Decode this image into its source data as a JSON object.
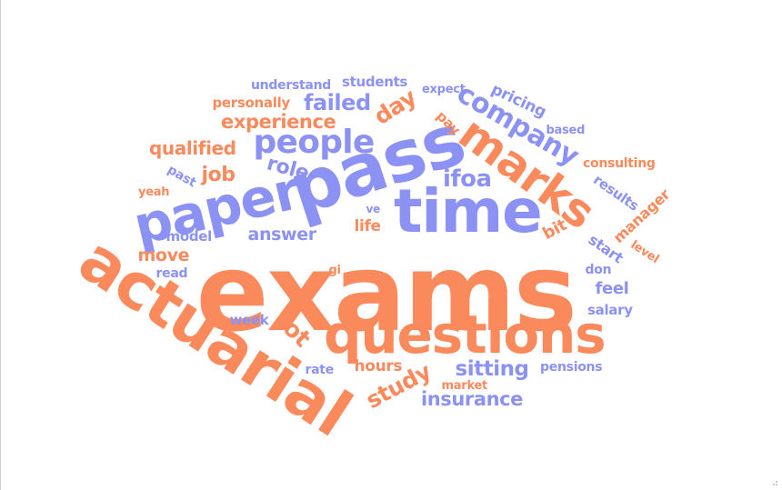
{
  "colors": {
    "orange": "#FA8A5C",
    "purple": "#8C92F4"
  },
  "words": [
    {
      "id": "exams",
      "text": "exams",
      "color": "orange"
    },
    {
      "id": "actuarial",
      "text": "actuarial",
      "color": "orange"
    },
    {
      "id": "pass",
      "text": "pass",
      "color": "purple"
    },
    {
      "id": "time",
      "text": "time",
      "color": "purple"
    },
    {
      "id": "paper",
      "text": "paper",
      "color": "purple"
    },
    {
      "id": "questions",
      "text": "questions",
      "color": "orange"
    },
    {
      "id": "marks",
      "text": "marks",
      "color": "orange"
    },
    {
      "id": "people",
      "text": "people",
      "color": "purple"
    },
    {
      "id": "company",
      "text": "company",
      "color": "purple"
    },
    {
      "id": "ifoa",
      "text": "ifoa",
      "color": "purple"
    },
    {
      "id": "experience",
      "text": "experience",
      "color": "orange"
    },
    {
      "id": "failed",
      "text": "failed",
      "color": "purple"
    },
    {
      "id": "day",
      "text": "day",
      "color": "orange"
    },
    {
      "id": "qualified",
      "text": "qualified",
      "color": "orange"
    },
    {
      "id": "job",
      "text": "job",
      "color": "orange"
    },
    {
      "id": "role",
      "text": "role",
      "color": "purple"
    },
    {
      "id": "lot",
      "text": "lot",
      "color": "orange"
    },
    {
      "id": "sitting",
      "text": "sitting",
      "color": "purple"
    },
    {
      "id": "study",
      "text": "study",
      "color": "orange"
    },
    {
      "id": "insurance",
      "text": "insurance",
      "color": "purple"
    },
    {
      "id": "answer",
      "text": "answer",
      "color": "purple"
    },
    {
      "id": "life",
      "text": "life",
      "color": "orange"
    },
    {
      "id": "move",
      "text": "move",
      "color": "orange"
    },
    {
      "id": "feel",
      "text": "feel",
      "color": "purple"
    },
    {
      "id": "hours",
      "text": "hours",
      "color": "orange"
    },
    {
      "id": "pricing",
      "text": "pricing",
      "color": "purple"
    },
    {
      "id": "results",
      "text": "results",
      "color": "purple"
    },
    {
      "id": "manager",
      "text": "manager",
      "color": "orange"
    },
    {
      "id": "start",
      "text": "start",
      "color": "purple"
    },
    {
      "id": "bit",
      "text": "bit",
      "color": "orange"
    },
    {
      "id": "pay",
      "text": "pay",
      "color": "orange"
    },
    {
      "id": "students",
      "text": "students",
      "color": "purple"
    },
    {
      "id": "understand",
      "text": "understand",
      "color": "purple"
    },
    {
      "id": "personally",
      "text": "personally",
      "color": "orange"
    },
    {
      "id": "expect",
      "text": "expect",
      "color": "purple"
    },
    {
      "id": "based",
      "text": "based",
      "color": "purple"
    },
    {
      "id": "consulting",
      "text": "consulting",
      "color": "orange"
    },
    {
      "id": "past",
      "text": "past",
      "color": "purple"
    },
    {
      "id": "yeah",
      "text": "yeah",
      "color": "orange"
    },
    {
      "id": "model",
      "text": "model",
      "color": "purple"
    },
    {
      "id": "read",
      "text": "read",
      "color": "purple"
    },
    {
      "id": "gi",
      "text": "gi",
      "color": "orange"
    },
    {
      "id": "week",
      "text": "week",
      "color": "purple"
    },
    {
      "id": "rate",
      "text": "rate",
      "color": "purple"
    },
    {
      "id": "market",
      "text": "market",
      "color": "orange"
    },
    {
      "id": "pensions",
      "text": "pensions",
      "color": "purple"
    },
    {
      "id": "salary",
      "text": "salary",
      "color": "purple"
    },
    {
      "id": "don",
      "text": "don",
      "color": "purple"
    },
    {
      "id": "level",
      "text": "level",
      "color": "orange"
    },
    {
      "id": "ve",
      "text": "ve",
      "color": "purple"
    }
  ]
}
